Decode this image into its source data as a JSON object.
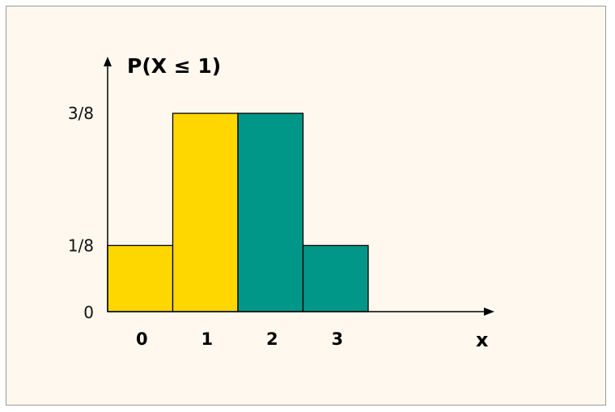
{
  "chart_data": {
    "type": "bar",
    "title": "P(X ≤ 1)",
    "xlabel": "x",
    "ylabel": "",
    "categories": [
      "0",
      "1",
      "2",
      "3"
    ],
    "values": [
      0.125,
      0.375,
      0.375,
      0.125
    ],
    "ylim": [
      0,
      0.5
    ],
    "yticks": [
      {
        "value": 0,
        "label": "0"
      },
      {
        "value": 0.125,
        "label": "1/8"
      },
      {
        "value": 0.375,
        "label": "3/8"
      }
    ],
    "bar_colors": [
      "#ffd700",
      "#ffd700",
      "#009688",
      "#009688"
    ],
    "shaded_categories": [
      "0",
      "1"
    ],
    "grid": false,
    "legend": "none"
  },
  "colors": {
    "background": "#fff8ee",
    "highlight": "#ffd700",
    "other": "#009688",
    "axis": "#000000"
  }
}
